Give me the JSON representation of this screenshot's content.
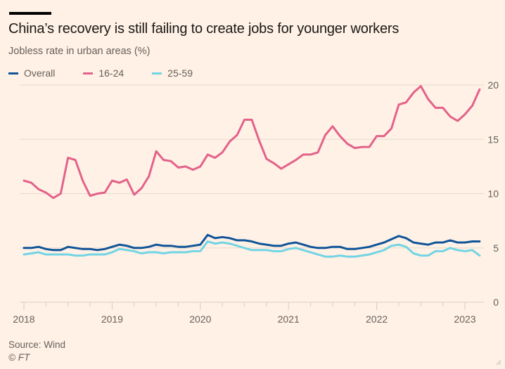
{
  "header": {
    "title": "China’s recovery is still failing to create jobs for younger workers",
    "subtitle": "Jobless rate in urban areas (%)"
  },
  "footer": {
    "source": "Source: Wind",
    "credit": "© FT"
  },
  "colors": {
    "background": "#fff1e5",
    "grid": "#e6d9ce",
    "overall": "#0f5499",
    "age_16_24": "#e3628a",
    "age_25_59": "#72d4e4"
  },
  "chart_data": {
    "type": "line",
    "title": "China’s recovery is still failing to create jobs for younger workers",
    "subtitle": "Jobless rate in urban areas (%)",
    "xlabel": "",
    "ylabel": "",
    "x_start": "2018-01",
    "x_end": "2023-03",
    "x_frequency": "monthly",
    "xticks": [
      "2018",
      "2019",
      "2020",
      "2021",
      "2022",
      "2023"
    ],
    "yticks": [
      0,
      5,
      10,
      15,
      20
    ],
    "ylim": [
      0,
      20
    ],
    "grid": true,
    "yaxis_side": "right",
    "legend_position": "top-left",
    "series": [
      {
        "name": "Overall",
        "color": "#0f5499",
        "values": [
          5.0,
          5.0,
          5.1,
          4.9,
          4.8,
          4.8,
          5.1,
          5.0,
          4.9,
          4.9,
          4.8,
          4.9,
          5.1,
          5.3,
          5.2,
          5.0,
          5.0,
          5.1,
          5.3,
          5.2,
          5.2,
          5.1,
          5.1,
          5.2,
          5.3,
          6.2,
          5.9,
          6.0,
          5.9,
          5.7,
          5.7,
          5.6,
          5.4,
          5.3,
          5.2,
          5.2,
          5.4,
          5.5,
          5.3,
          5.1,
          5.0,
          5.0,
          5.1,
          5.1,
          4.9,
          4.9,
          5.0,
          5.1,
          5.3,
          5.5,
          5.8,
          6.1,
          5.9,
          5.5,
          5.4,
          5.3,
          5.5,
          5.5,
          5.7,
          5.5,
          5.5,
          5.6,
          5.6
        ]
      },
      {
        "name": "16-24",
        "color": "#e3628a",
        "values": [
          11.2,
          11.0,
          10.4,
          10.1,
          9.6,
          10.0,
          13.3,
          13.1,
          11.2,
          9.8,
          10.0,
          10.1,
          11.2,
          11.0,
          11.3,
          9.9,
          10.5,
          11.6,
          13.9,
          13.1,
          13.0,
          12.4,
          12.5,
          12.2,
          12.5,
          13.6,
          13.3,
          13.8,
          14.8,
          15.4,
          16.8,
          16.8,
          14.9,
          13.2,
          12.8,
          12.3,
          12.7,
          13.1,
          13.6,
          13.6,
          13.8,
          15.4,
          16.2,
          15.3,
          14.6,
          14.2,
          14.3,
          14.3,
          15.3,
          15.3,
          16.0,
          18.2,
          18.4,
          19.3,
          19.9,
          18.7,
          17.9,
          17.9,
          17.1,
          16.7,
          17.3,
          18.1,
          19.6
        ]
      },
      {
        "name": "25-59",
        "color": "#72d4e4",
        "values": [
          4.4,
          4.5,
          4.6,
          4.4,
          4.4,
          4.4,
          4.4,
          4.3,
          4.3,
          4.4,
          4.4,
          4.4,
          4.6,
          4.9,
          4.8,
          4.7,
          4.5,
          4.6,
          4.6,
          4.5,
          4.6,
          4.6,
          4.6,
          4.7,
          4.7,
          5.6,
          5.4,
          5.5,
          5.4,
          5.2,
          5.0,
          4.8,
          4.8,
          4.8,
          4.7,
          4.7,
          4.9,
          5.0,
          4.8,
          4.6,
          4.4,
          4.2,
          4.2,
          4.3,
          4.2,
          4.2,
          4.3,
          4.4,
          4.6,
          4.8,
          5.2,
          5.3,
          5.1,
          4.5,
          4.3,
          4.3,
          4.7,
          4.7,
          5.0,
          4.8,
          4.7,
          4.8,
          4.3
        ]
      }
    ]
  }
}
